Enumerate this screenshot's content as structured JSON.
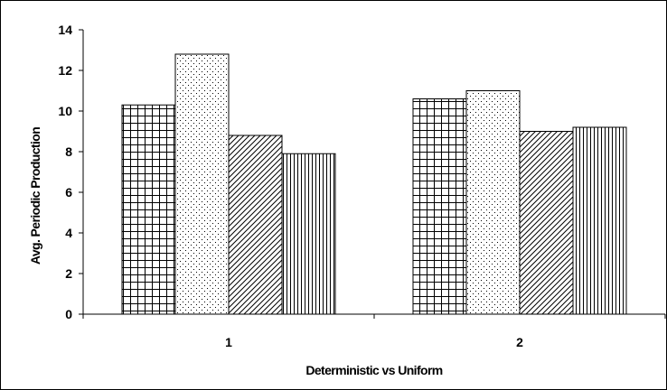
{
  "chart_data": {
    "type": "bar",
    "categories": [
      "1",
      "2"
    ],
    "series": [
      {
        "pattern": "grid",
        "values": [
          10.3,
          10.6
        ]
      },
      {
        "pattern": "dots",
        "values": [
          12.8,
          11.0
        ]
      },
      {
        "pattern": "diagonal-hatch",
        "values": [
          8.8,
          9.0
        ]
      },
      {
        "pattern": "vertical-lines",
        "values": [
          7.9,
          9.2
        ]
      }
    ],
    "title": "",
    "xlabel": "Deterministic vs Uniform",
    "ylabel": "Avg. Periodic Production",
    "ylim": [
      0,
      14
    ],
    "yticks": [
      "0",
      "2",
      "4",
      "6",
      "8",
      "10",
      "12",
      "14"
    ],
    "grid": false,
    "legend": "none"
  }
}
